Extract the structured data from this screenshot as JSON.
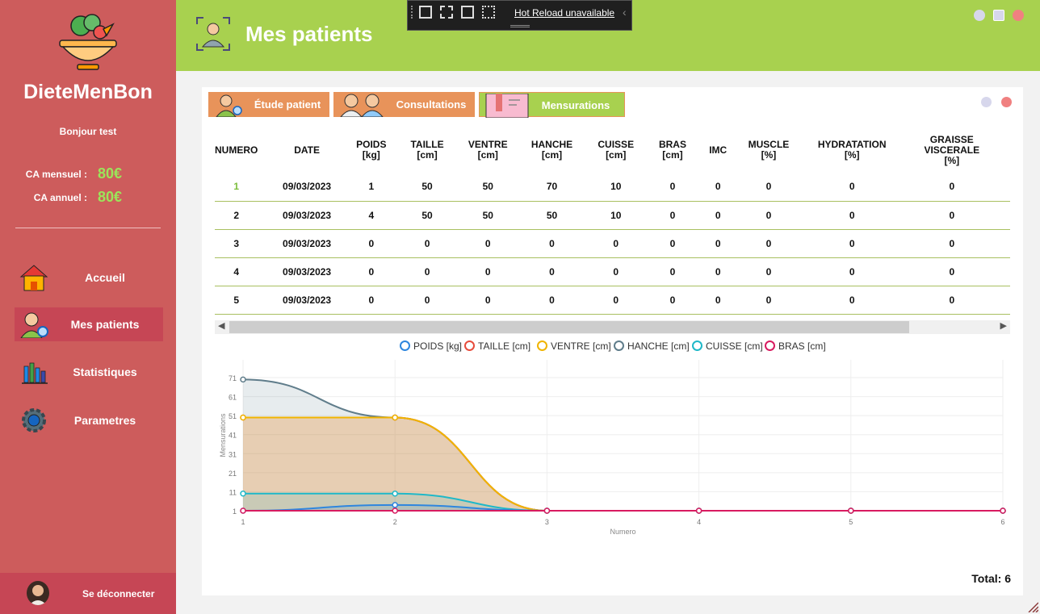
{
  "app": {
    "brand": "DieteMenBon",
    "greeting": "Bonjour test",
    "ca_mensuel_label": "CA mensuel :",
    "ca_mensuel_value": "80€",
    "ca_annuel_label": "CA annuel :",
    "ca_annuel_value": "80€"
  },
  "sidebar": {
    "items": [
      {
        "label": "Accueil",
        "icon": "home-icon"
      },
      {
        "label": "Mes patients",
        "icon": "patient-icon"
      },
      {
        "label": "Statistiques",
        "icon": "stats-icon"
      },
      {
        "label": "Parametres",
        "icon": "gear-icon"
      }
    ],
    "logout_label": "Se déconnecter"
  },
  "header": {
    "title": "Mes patients",
    "devtools_label": "Hot Reload unavailable"
  },
  "tabs": [
    {
      "label": "Étude patient",
      "color": "#e8935a"
    },
    {
      "label": "Consultations",
      "color": "#e8935a"
    },
    {
      "label": "Mensurations",
      "color": "#a8d14f"
    }
  ],
  "table": {
    "columns": [
      "NUMERO",
      "DATE",
      "POIDS\n[kg]",
      "TAILLE\n[cm]",
      "VENTRE\n[cm]",
      "HANCHE\n[cm]",
      "CUISSE\n[cm]",
      "BRAS\n[cm]",
      "IMC",
      "MUSCLE\n[%]",
      "HYDRATATION\n[%]",
      "GRAISSE\nVISCERALE\n[%]"
    ],
    "rows": [
      [
        "1",
        "09/03/2023",
        "1",
        "50",
        "50",
        "70",
        "10",
        "0",
        "0",
        "0",
        "0",
        "0"
      ],
      [
        "2",
        "09/03/2023",
        "4",
        "50",
        "50",
        "50",
        "10",
        "0",
        "0",
        "0",
        "0",
        "0"
      ],
      [
        "3",
        "09/03/2023",
        "0",
        "0",
        "0",
        "0",
        "0",
        "0",
        "0",
        "0",
        "0",
        "0"
      ],
      [
        "4",
        "09/03/2023",
        "0",
        "0",
        "0",
        "0",
        "0",
        "0",
        "0",
        "0",
        "0",
        "0"
      ],
      [
        "5",
        "09/03/2023",
        "0",
        "0",
        "0",
        "0",
        "0",
        "0",
        "0",
        "0",
        "0",
        "0"
      ]
    ]
  },
  "chart_data": {
    "type": "area",
    "x": [
      1,
      2,
      3,
      4,
      5,
      6
    ],
    "xlabel": "Numero",
    "ylabel": "Mensurations",
    "ylim": [
      1,
      71
    ],
    "yticks": [
      1,
      11,
      21,
      31,
      41,
      51,
      61,
      71
    ],
    "xticks": [
      1,
      2,
      3,
      4,
      5,
      6
    ],
    "series": [
      {
        "name": "POIDS [kg]",
        "color": "#2e86de",
        "values": [
          1,
          4,
          0,
          0,
          0,
          0
        ]
      },
      {
        "name": "TAILLE [cm]",
        "color": "#e74c3c",
        "values": [
          50,
          50,
          0,
          0,
          0,
          0
        ]
      },
      {
        "name": "VENTRE [cm]",
        "color": "#f0b400",
        "values": [
          50,
          50,
          0,
          0,
          0,
          0
        ]
      },
      {
        "name": "HANCHE [cm]",
        "color": "#607d8b",
        "values": [
          70,
          50,
          0,
          0,
          0,
          0
        ]
      },
      {
        "name": "CUISSE [cm]",
        "color": "#1fb8c8",
        "values": [
          10,
          10,
          0,
          0,
          0,
          0
        ]
      },
      {
        "name": "BRAS [cm]",
        "color": "#d81b60",
        "values": [
          0,
          0,
          0,
          0,
          0,
          0
        ]
      }
    ]
  },
  "footer": {
    "total_label": "Total: 6"
  }
}
